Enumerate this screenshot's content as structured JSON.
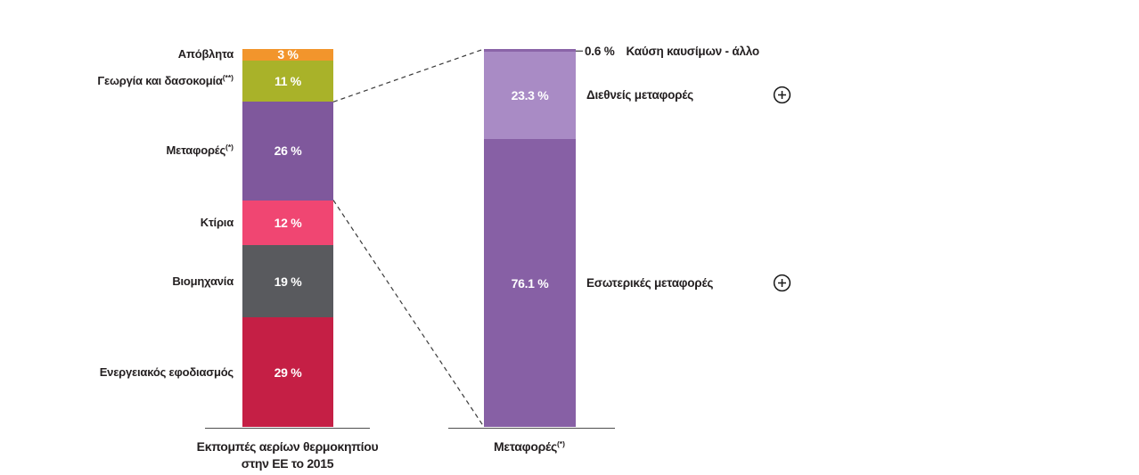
{
  "colors": {
    "text": "#231f20",
    "axis_line": "#4d4d4d",
    "connector_line": "#3a3a3a",
    "value_text": "#ffffff"
  },
  "icons": {
    "expand": "plus-circle-icon"
  },
  "chart_data": [
    {
      "type": "bar",
      "subtype": "stacked_single_column",
      "id": "eu-ghg-2015",
      "unit": "%",
      "axis_caption_lines": [
        "Εκπομπές αερίων θερμοκηπίου",
        "στην ΕΕ το 2015"
      ],
      "ylim": [
        0,
        100
      ],
      "segments": [
        {
          "label": "Απόβλητα",
          "label_sup": "",
          "value": 3,
          "value_label": "3 %",
          "color": "#f2952c"
        },
        {
          "label": "Γεωργία και δασοκομία",
          "label_sup": "(**)",
          "value": 11,
          "value_label": "11 %",
          "color": "#a9b229"
        },
        {
          "label": "Μεταφορές",
          "label_sup": "(*)",
          "value": 26,
          "value_label": "26 %",
          "color": "#7f589c"
        },
        {
          "label": "Κτίρια",
          "label_sup": "",
          "value": 12,
          "value_label": "12 %",
          "color": "#f04672"
        },
        {
          "label": "Βιομηχανία",
          "label_sup": "",
          "value": 19,
          "value_label": "19 %",
          "color": "#595a5e"
        },
        {
          "label": "Ενεργειακός εφοδιασμός",
          "label_sup": "",
          "value": 29,
          "value_label": "29 %",
          "color": "#c51f45"
        }
      ]
    },
    {
      "type": "bar",
      "subtype": "stacked_single_column",
      "id": "transport-breakdown",
      "unit": "%",
      "axis_caption_main": "Μεταφορές",
      "axis_caption_sup": "(*)",
      "ylim": [
        0,
        100
      ],
      "segments": [
        {
          "label": "Καύση καυσίμων - άλλο",
          "value": 0.6,
          "value_label": "0.6 %",
          "color": "#8a64a8",
          "label_position": "outside",
          "expandable": false
        },
        {
          "label": "Διεθνείς μεταφορές",
          "value": 23.3,
          "value_label": "23.3 %",
          "color": "#a98bc5",
          "label_position": "right",
          "expandable": true
        },
        {
          "label": "Εσωτερικές μεταφορές",
          "value": 76.1,
          "value_label": "76.1 %",
          "color": "#8760a5",
          "label_position": "right",
          "expandable": true
        }
      ]
    }
  ]
}
